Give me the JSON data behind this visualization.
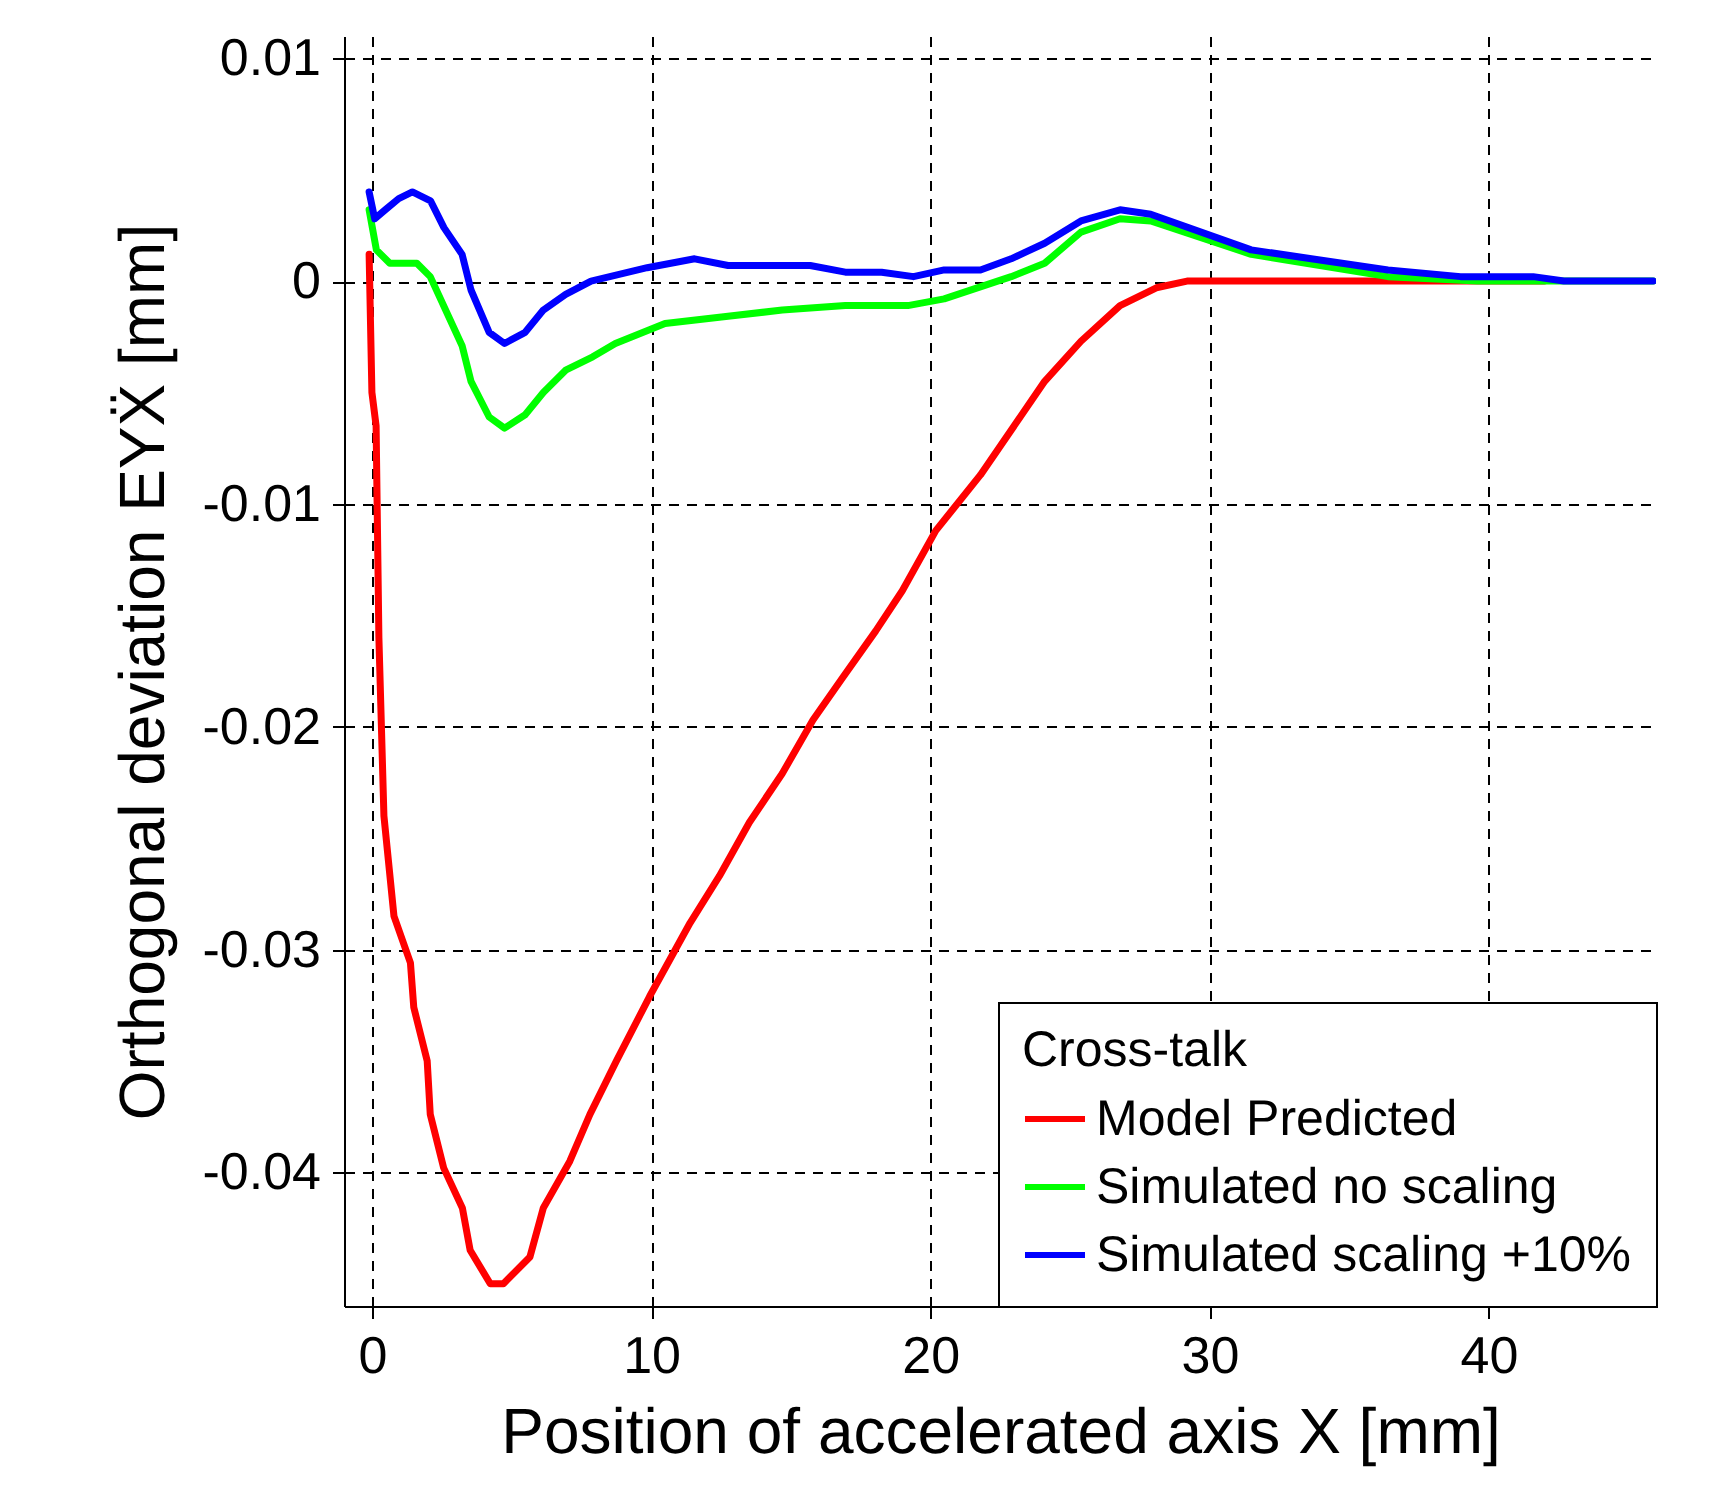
{
  "chart_data": {
    "type": "line",
    "xlabel": "Position of accelerated axis X [mm]",
    "ylabel": "Orthogonal deviation EYẌ [mm]",
    "legend_title": "Cross-talk",
    "xlim": [
      -1,
      46
    ],
    "ylim": [
      -0.046,
      0.011
    ],
    "xticks": [
      0,
      10,
      20,
      30,
      40
    ],
    "yticks": [
      0.01,
      0,
      -0.01,
      -0.02,
      -0.03,
      -0.04
    ],
    "grid": true,
    "legend": "bottom right",
    "line_style": "solid",
    "series": [
      {
        "name": "Model Predicted",
        "color": "#ff0000",
        "x": [
          -0.1,
          0.0,
          0.15,
          0.25,
          0.43,
          0.79,
          1.38,
          1.5,
          1.98,
          2.09,
          2.57,
          3.24,
          3.52,
          4.24,
          4.71,
          5.66,
          6.14,
          7.09,
          7.81,
          8.76,
          9.95,
          11.4,
          12.45,
          13.52,
          14.7,
          15.8,
          16.86,
          18.05,
          19.0,
          20.2,
          21.8,
          24.1,
          25.4,
          26.8,
          28.1,
          29.2,
          35,
          42
        ],
        "values": [
          0.0012,
          -0.005,
          -0.0065,
          -0.016,
          -0.024,
          -0.0285,
          -0.0306,
          -0.0326,
          -0.035,
          -0.0374,
          -0.0398,
          -0.0416,
          -0.0435,
          -0.045,
          -0.045,
          -0.0438,
          -0.0416,
          -0.0395,
          -0.0374,
          -0.035,
          -0.0321,
          -0.0288,
          -0.0267,
          -0.0243,
          -0.0221,
          -0.0197,
          -0.0178,
          -0.0157,
          -0.0139,
          -0.0112,
          -0.0087,
          -0.0045,
          -0.0027,
          -0.0011,
          -0.0003,
          0,
          0,
          0
        ]
      },
      {
        "name": "Simulated no scaling",
        "color": "#00ff00",
        "x": [
          -0.1,
          0.16,
          0.64,
          1.61,
          2.09,
          3.23,
          3.55,
          4.2,
          4.75,
          5.49,
          6.14,
          6.94,
          7.91,
          8.72,
          10.5,
          12.6,
          14.7,
          16.96,
          19.2,
          20.5,
          22.9,
          24.1,
          25.4,
          26.8,
          27.9,
          31.5,
          36.4,
          39.6,
          45.9
        ],
        "values": [
          0.0032,
          0.0014,
          0.0008,
          0.0008,
          0.0002,
          -0.0029,
          -0.0045,
          -0.0061,
          -0.0066,
          -0.006,
          -0.005,
          -0.004,
          -0.0034,
          -0.0028,
          -0.0019,
          -0.0016,
          -0.0013,
          -0.0011,
          -0.0011,
          -0.0008,
          0.0002,
          0.0008,
          0.0022,
          0.0028,
          0.0027,
          0.0012,
          0.0002,
          0,
          0
        ]
      },
      {
        "name": "Simulated scaling +10%",
        "color": "#0000ff",
        "x": [
          -0.1,
          0.1,
          0.48,
          0.96,
          1.45,
          2.1,
          2.58,
          3.23,
          3.55,
          4.2,
          4.75,
          5.49,
          6.14,
          6.94,
          7.85,
          9.86,
          11.56,
          12.76,
          15.7,
          16.96,
          18.26,
          19.4,
          20.5,
          21.8,
          22.9,
          24.1,
          25.4,
          26.8,
          27.9,
          31.5,
          36.4,
          39,
          41.6,
          42.7,
          45.9
        ],
        "values": [
          0.004,
          0.0028,
          0.0032,
          0.0037,
          0.004,
          0.0036,
          0.0024,
          0.0012,
          -0.0004,
          -0.0023,
          -0.0028,
          -0.0023,
          -0.0013,
          -0.0006,
          0,
          0.0006,
          0.001,
          0.0007,
          0.0007,
          0.0004,
          0.0004,
          0.0002,
          0.0005,
          0.0005,
          0.001,
          0.0017,
          0.0027,
          0.0032,
          0.003,
          0.0014,
          0.0005,
          0.0002,
          0.0002,
          0,
          0
        ]
      }
    ]
  }
}
